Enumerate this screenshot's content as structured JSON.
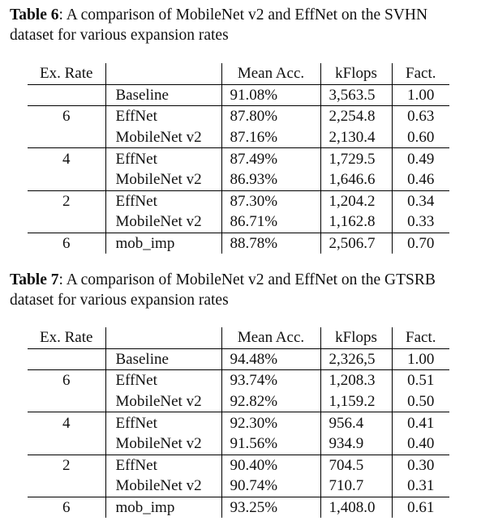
{
  "table6": {
    "caption_label": "Table 6",
    "caption_text": ": A comparison of MobileNet v2 and EffNet on the SVHN dataset for various expansion rates",
    "headers": [
      "Ex. Rate",
      "",
      "Mean Acc.",
      "kFlops",
      "Fact."
    ],
    "rows": [
      {
        "rate": "",
        "model": "Baseline",
        "acc": "91.08%",
        "kflops": "3,563.5",
        "fact": "1.00",
        "bold": [],
        "group_start": false
      },
      {
        "rate": "6",
        "model": "EffNet",
        "acc": "87.80%",
        "kflops": "2,254.8",
        "fact": "0.63",
        "bold": [
          "acc"
        ],
        "group_start": true
      },
      {
        "rate": "",
        "model": "MobileNet v2",
        "acc": "87.16%",
        "kflops": "2,130.4",
        "fact": "0.60",
        "bold": [
          "kflops",
          "fact"
        ],
        "group_start": false
      },
      {
        "rate": "4",
        "model": "EffNet",
        "acc": "87.49%",
        "kflops": "1,729.5",
        "fact": "0.49",
        "bold": [
          "acc"
        ],
        "group_start": true
      },
      {
        "rate": "",
        "model": "MobileNet v2",
        "acc": "86.93%",
        "kflops": "1,646.6",
        "fact": "0.46",
        "bold": [
          "kflops",
          "fact"
        ],
        "group_start": false
      },
      {
        "rate": "2",
        "model": "EffNet",
        "acc": "87.30%",
        "kflops": "1,204.2",
        "fact": "0.34",
        "bold": [
          "acc"
        ],
        "group_start": true
      },
      {
        "rate": "",
        "model": "MobileNet v2",
        "acc": "86.71%",
        "kflops": "1,162.8",
        "fact": "0.33",
        "bold": [
          "kflops",
          "fact"
        ],
        "group_start": false
      },
      {
        "rate": "6",
        "model": "mob_imp",
        "acc": "88.78%",
        "kflops": "2,506.7",
        "fact": "0.70",
        "bold": [],
        "group_start": true
      }
    ]
  },
  "table7": {
    "caption_label": "Table 7",
    "caption_text": ": A comparison of MobileNet v2 and EffNet on the GTSRB dataset for various expansion rates",
    "headers": [
      "Ex. Rate",
      "",
      "Mean Acc.",
      "kFlops",
      "Fact."
    ],
    "rows": [
      {
        "rate": "",
        "model": "Baseline",
        "acc": "94.48%",
        "kflops": "2,326,5",
        "fact": "1.00",
        "bold": [],
        "group_start": false
      },
      {
        "rate": "6",
        "model": "EffNet",
        "acc": "93.74%",
        "kflops": "1,208.3",
        "fact": "0.51",
        "bold": [
          "acc"
        ],
        "group_start": true
      },
      {
        "rate": "",
        "model": "MobileNet v2",
        "acc": "92.82%",
        "kflops": "1,159.2",
        "fact": "0.50",
        "bold": [
          "kflops",
          "fact"
        ],
        "group_start": false
      },
      {
        "rate": "4",
        "model": "EffNet",
        "acc": "92.30%",
        "kflops": "956.4",
        "fact": "0.41",
        "bold": [
          "acc"
        ],
        "group_start": true
      },
      {
        "rate": "",
        "model": "MobileNet v2",
        "acc": "91.56%",
        "kflops": "934.9",
        "fact": "0.40",
        "bold": [
          "kflops",
          "fact"
        ],
        "group_start": false
      },
      {
        "rate": "2",
        "model": "EffNet",
        "acc": "90.40%",
        "kflops": "704.5",
        "fact": "0.30",
        "bold": [
          "kflops",
          "fact"
        ],
        "group_start": true
      },
      {
        "rate": "",
        "model": "MobileNet v2",
        "acc": "90.74%",
        "kflops": "710.7",
        "fact": "0.31",
        "bold": [
          "acc"
        ],
        "group_start": false
      },
      {
        "rate": "6",
        "model": "mob_imp",
        "acc": "93.25%",
        "kflops": "1,408.0",
        "fact": "0.61",
        "bold": [],
        "group_start": true
      }
    ]
  }
}
